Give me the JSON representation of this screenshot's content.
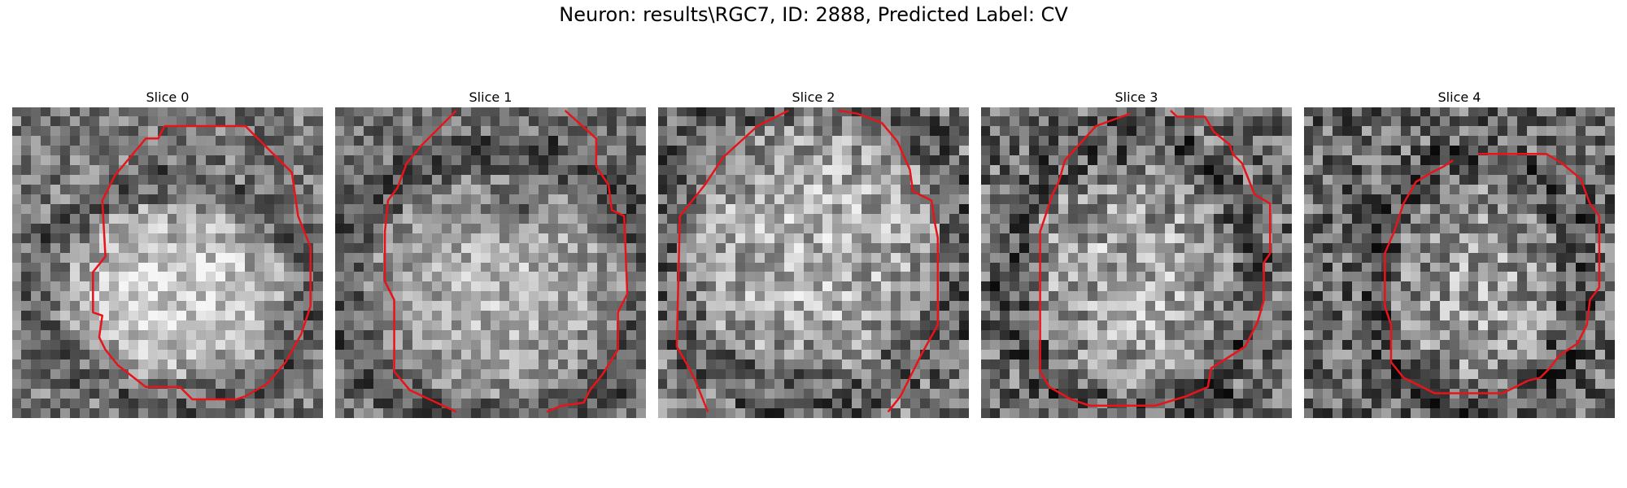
{
  "figure": {
    "title": "Neuron: results\\RGC7, ID: 2888, Predicted Label: CV"
  },
  "colors": {
    "contour": "#e8141a",
    "colormap": "gray"
  },
  "panels": [
    {
      "title": "Slice 0"
    },
    {
      "title": "Slice 1"
    },
    {
      "title": "Slice 2"
    },
    {
      "title": "Slice 3"
    },
    {
      "title": "Slice 4"
    }
  ]
}
